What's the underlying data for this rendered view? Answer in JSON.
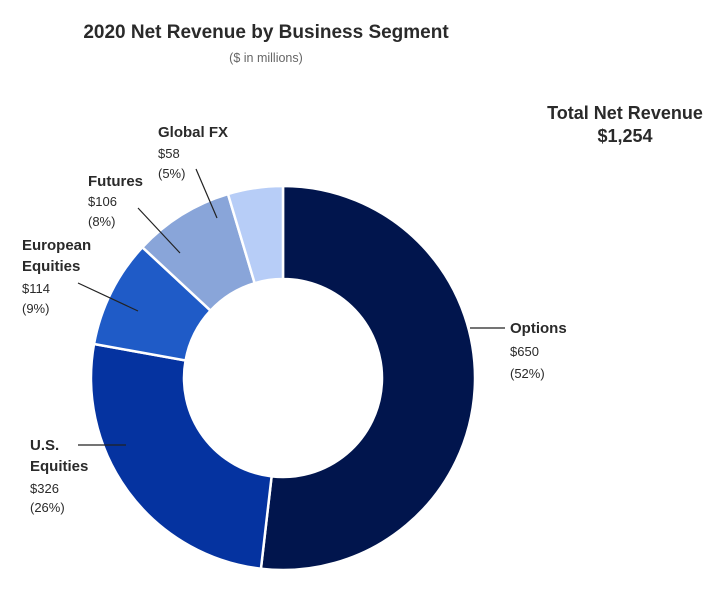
{
  "chart_data": {
    "type": "pie",
    "style": "donut",
    "title": "2020 Net Revenue by Business Segment",
    "subtitle": "($ in millions)",
    "total_label": "Total Net Revenue",
    "total_value": "$1,254",
    "slices": [
      {
        "label": "Options",
        "value": 650,
        "value_text": "$650",
        "percent_text": "(52%)",
        "color": "#01154d"
      },
      {
        "label": "U.S. Equities",
        "label_lines": [
          "U.S.",
          "Equities"
        ],
        "value": 326,
        "value_text": "$326",
        "percent_text": "(26%)",
        "color": "#0533a0"
      },
      {
        "label": "European Equities",
        "label_lines": [
          "European",
          "Equities"
        ],
        "value": 114,
        "value_text": "$114",
        "percent_text": "(9%)",
        "color": "#1f5bc7"
      },
      {
        "label": "Futures",
        "value": 106,
        "value_text": "$106",
        "percent_text": "(8%)",
        "color": "#89a5d9"
      },
      {
        "label": "Global FX",
        "value": 58,
        "value_text": "$58",
        "percent_text": "(5%)",
        "color": "#b7cdf7"
      }
    ]
  }
}
